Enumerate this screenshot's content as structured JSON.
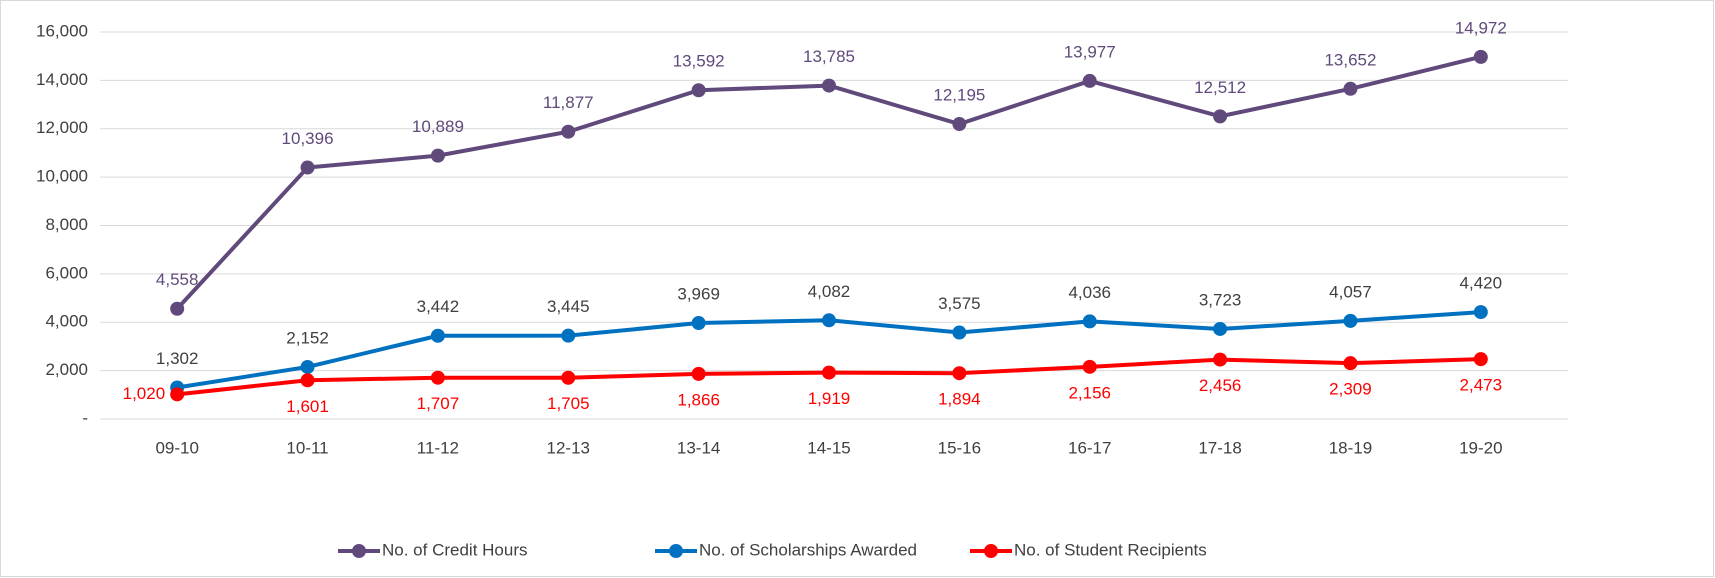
{
  "chart_data": {
    "type": "line",
    "categories": [
      "09-10",
      "10-11",
      "11-12",
      "12-13",
      "13-14",
      "14-15",
      "15-16",
      "16-17",
      "17-18",
      "18-19",
      "19-20"
    ],
    "series": [
      {
        "name": "No. of Credit Hours",
        "color": "#604a7b",
        "label_color": "#604a7b",
        "values": [
          4558,
          10396,
          10889,
          11877,
          13592,
          13785,
          12195,
          13977,
          12512,
          13652,
          14972
        ],
        "value_labels": [
          "4,558",
          "10,396",
          "10,889",
          "11,877",
          "13,592",
          "13,785",
          "12,195",
          "13,977",
          "12,512",
          "13,652",
          "14,972"
        ]
      },
      {
        "name": "No. of Scholarships Awarded",
        "color": "#0070c0",
        "label_color": "#404040",
        "values": [
          1302,
          2152,
          3442,
          3445,
          3969,
          4082,
          3575,
          4036,
          3723,
          4057,
          4420
        ],
        "value_labels": [
          "1,302",
          "2,152",
          "3,442",
          "3,445",
          "3,969",
          "4,082",
          "3,575",
          "4,036",
          "3,723",
          "4,057",
          "4,420"
        ]
      },
      {
        "name": "No. of Student Recipients",
        "color": "#ff0000",
        "label_color": "#ff0000",
        "values": [
          1020,
          1601,
          1707,
          1705,
          1866,
          1919,
          1894,
          2156,
          2456,
          2309,
          2473
        ],
        "value_labels": [
          "1,020",
          "1,601",
          "1,707",
          "1,705",
          "1,866",
          "1,919",
          "1,894",
          "2,156",
          "2,456",
          "2,309",
          "2,473"
        ]
      }
    ],
    "ylim": [
      0,
      16000
    ],
    "yticks": [
      {
        "value": 0,
        "label": "-"
      },
      {
        "value": 2000,
        "label": "2,000"
      },
      {
        "value": 4000,
        "label": "4,000"
      },
      {
        "value": 6000,
        "label": "6,000"
      },
      {
        "value": 8000,
        "label": "8,000"
      },
      {
        "value": 10000,
        "label": "10,000"
      },
      {
        "value": 12000,
        "label": "12,000"
      },
      {
        "value": 14000,
        "label": "14,000"
      },
      {
        "value": 16000,
        "label": "16,000"
      }
    ],
    "grid": true,
    "legend": "bottom"
  }
}
